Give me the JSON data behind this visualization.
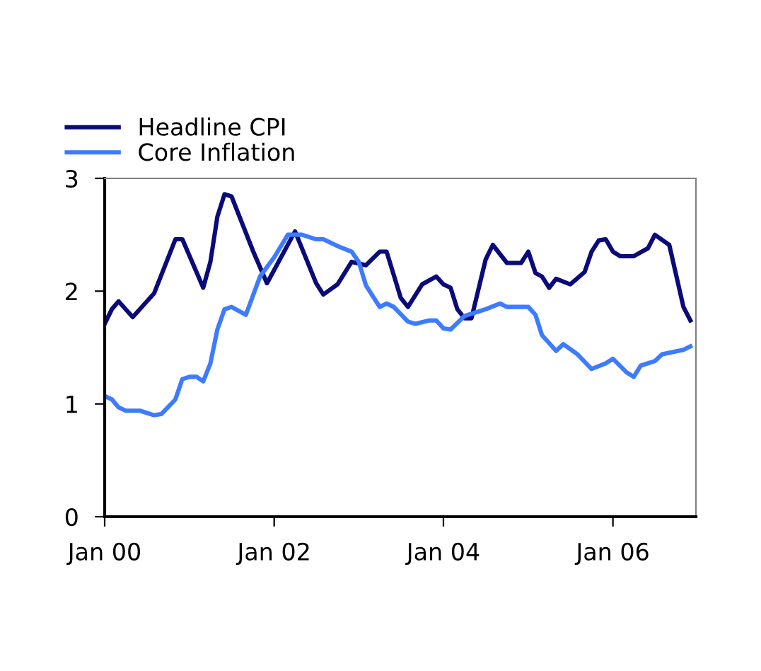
{
  "chart_data": {
    "type": "line",
    "legend": "top left",
    "grid": false,
    "marker": "none",
    "line_style": "solid",
    "xlim": [
      "2000-01-01",
      "2006-12-25"
    ],
    "ylim": [
      0,
      3
    ],
    "yticks": [
      0,
      1,
      2,
      3
    ],
    "xticks": [
      {
        "value": "2000-01-01",
        "label": "Jan 00"
      },
      {
        "value": "2002-01-01",
        "label": "Jan 02"
      },
      {
        "value": "2004-01-01",
        "label": "Jan 04"
      },
      {
        "value": "2006-01-01",
        "label": "Jan 06"
      }
    ],
    "series": [
      {
        "name": "Headline CPI",
        "color": "#0a0a7a",
        "x": [
          "2000-01",
          "2000-02",
          "2000-03",
          "2000-05",
          "2000-08",
          "2000-11",
          "2000-12",
          "2001-03",
          "2001-04",
          "2001-05",
          "2001-06",
          "2001-07",
          "2001-10",
          "2001-12",
          "2002-04",
          "2002-07",
          "2002-08",
          "2002-10",
          "2002-12",
          "2003-02",
          "2003-04",
          "2003-05",
          "2003-07",
          "2003-08",
          "2003-10",
          "2003-12",
          "2004-01",
          "2004-02",
          "2004-03",
          "2004-04",
          "2004-05",
          "2004-07",
          "2004-08",
          "2004-10",
          "2004-12",
          "2005-01",
          "2005-02",
          "2005-03",
          "2005-04",
          "2005-05",
          "2005-07",
          "2005-09",
          "2005-10",
          "2005-11",
          "2005-12",
          "2006-01",
          "2006-02",
          "2006-04",
          "2006-06",
          "2006-07",
          "2006-09",
          "2006-11",
          "2006-12"
        ],
        "values": [
          1.71,
          1.84,
          1.91,
          1.77,
          1.98,
          2.46,
          2.46,
          2.03,
          2.26,
          2.66,
          2.86,
          2.84,
          2.36,
          2.07,
          2.53,
          2.07,
          1.97,
          2.06,
          2.26,
          2.23,
          2.35,
          2.35,
          1.94,
          1.86,
          2.06,
          2.13,
          2.06,
          2.03,
          1.84,
          1.76,
          1.76,
          2.28,
          2.41,
          2.25,
          2.25,
          2.35,
          2.16,
          2.13,
          2.03,
          2.11,
          2.06,
          2.17,
          2.35,
          2.45,
          2.46,
          2.35,
          2.31,
          2.31,
          2.38,
          2.5,
          2.41,
          1.86,
          1.74
        ]
      },
      {
        "name": "Core Inflation",
        "color": "#3d7bff",
        "x": [
          "2000-01",
          "2000-02",
          "2000-03",
          "2000-04",
          "2000-06",
          "2000-08",
          "2000-09",
          "2000-11",
          "2000-12",
          "2001-01",
          "2001-02",
          "2001-03",
          "2001-04",
          "2001-05",
          "2001-06",
          "2001-07",
          "2001-09",
          "2001-11",
          "2002-01",
          "2002-03",
          "2002-05",
          "2002-07",
          "2002-08",
          "2002-10",
          "2002-12",
          "2003-01",
          "2003-02",
          "2003-04",
          "2003-05",
          "2003-06",
          "2003-08",
          "2003-09",
          "2003-11",
          "2003-12",
          "2004-01",
          "2004-02",
          "2004-04",
          "2004-06",
          "2004-07",
          "2004-09",
          "2004-10",
          "2005-01",
          "2005-02",
          "2005-03",
          "2005-05",
          "2005-06",
          "2005-08",
          "2005-10",
          "2005-12",
          "2006-01",
          "2006-03",
          "2006-04",
          "2006-05",
          "2006-07",
          "2006-08",
          "2006-11",
          "2006-12"
        ],
        "values": [
          1.07,
          1.04,
          0.97,
          0.94,
          0.94,
          0.9,
          0.91,
          1.04,
          1.22,
          1.24,
          1.24,
          1.2,
          1.36,
          1.66,
          1.84,
          1.86,
          1.79,
          2.13,
          2.3,
          2.5,
          2.5,
          2.46,
          2.46,
          2.4,
          2.35,
          2.26,
          2.05,
          1.86,
          1.89,
          1.86,
          1.73,
          1.71,
          1.74,
          1.74,
          1.67,
          1.66,
          1.78,
          1.82,
          1.84,
          1.89,
          1.86,
          1.86,
          1.79,
          1.61,
          1.47,
          1.53,
          1.44,
          1.31,
          1.36,
          1.4,
          1.28,
          1.24,
          1.34,
          1.38,
          1.44,
          1.48,
          1.51
        ]
      }
    ]
  }
}
